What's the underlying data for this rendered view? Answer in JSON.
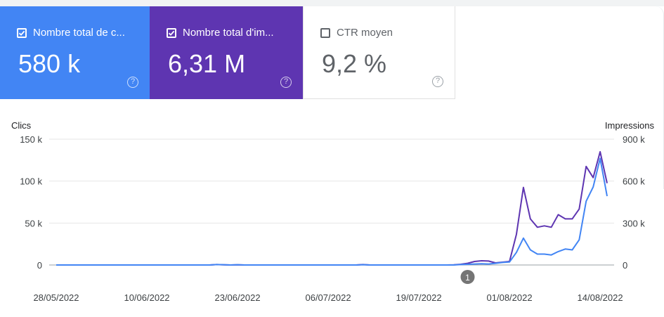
{
  "cards": [
    {
      "label": "Nombre total de c...",
      "value": "580 k",
      "checked": true,
      "color": "#4285f4"
    },
    {
      "label": "Nombre total d'im...",
      "value": "6,31 M",
      "checked": true,
      "color": "#5e35b1"
    },
    {
      "label": "CTR moyen",
      "value": "9,2 %",
      "checked": false,
      "color": "#ffffff"
    }
  ],
  "help_glyph": "?",
  "annotation": {
    "label": "1",
    "date": "26/07/2022"
  },
  "chart_data": {
    "type": "line",
    "ylabel_left": "Clics",
    "ylabel_right": "Impressions",
    "left_ticks": [
      "0",
      "50 k",
      "100 k",
      "150 k"
    ],
    "right_ticks": [
      "0",
      "300 k",
      "600 k",
      "900 k"
    ],
    "ylim_left": [
      0,
      150000
    ],
    "ylim_right": [
      0,
      900000
    ],
    "x_ticks": [
      "28/05/2022",
      "10/06/2022",
      "23/06/2022",
      "06/07/2022",
      "19/07/2022",
      "01/08/2022",
      "14/08/2022"
    ],
    "x": [
      "28/05",
      "29/05",
      "30/05",
      "31/05",
      "01/06",
      "02/06",
      "03/06",
      "04/06",
      "05/06",
      "06/06",
      "07/06",
      "08/06",
      "09/06",
      "10/06",
      "11/06",
      "12/06",
      "13/06",
      "14/06",
      "15/06",
      "16/06",
      "17/06",
      "18/06",
      "19/06",
      "20/06",
      "21/06",
      "22/06",
      "23/06",
      "24/06",
      "25/06",
      "26/06",
      "27/06",
      "28/06",
      "29/06",
      "30/06",
      "01/07",
      "02/07",
      "03/07",
      "04/07",
      "05/07",
      "06/07",
      "07/07",
      "08/07",
      "09/07",
      "10/07",
      "11/07",
      "12/07",
      "13/07",
      "14/07",
      "15/07",
      "16/07",
      "17/07",
      "18/07",
      "19/07",
      "20/07",
      "21/07",
      "22/07",
      "23/07",
      "24/07",
      "25/07",
      "26/07",
      "27/07",
      "28/07",
      "29/07",
      "30/07",
      "31/07",
      "01/08",
      "02/08",
      "03/08",
      "04/08",
      "05/08",
      "06/08",
      "07/08",
      "08/08",
      "09/08",
      "10/08",
      "11/08",
      "12/08",
      "13/08",
      "14/08",
      "15/08"
    ],
    "series": [
      {
        "name": "Clics",
        "axis": "left",
        "color": "#4285f4",
        "values": [
          0,
          0,
          0,
          0,
          0,
          0,
          0,
          0,
          0,
          0,
          0,
          0,
          0,
          0,
          0,
          0,
          0,
          0,
          0,
          0,
          0,
          0,
          0,
          500,
          300,
          0,
          300,
          0,
          0,
          0,
          0,
          0,
          0,
          0,
          0,
          0,
          0,
          0,
          0,
          0,
          0,
          0,
          0,
          0,
          300,
          0,
          0,
          0,
          0,
          0,
          0,
          0,
          0,
          0,
          0,
          0,
          0,
          0,
          500,
          800,
          1200,
          1500,
          1200,
          2000,
          3000,
          3500,
          15000,
          32000,
          18000,
          13000,
          13000,
          12000,
          16000,
          19000,
          18000,
          30000,
          76000,
          93000,
          127000,
          82000
        ]
      },
      {
        "name": "Impressions",
        "axis": "right",
        "color": "#5e35b1",
        "values": [
          0,
          0,
          0,
          0,
          0,
          0,
          0,
          0,
          0,
          0,
          0,
          0,
          0,
          0,
          0,
          0,
          0,
          0,
          0,
          0,
          0,
          0,
          0,
          3000,
          1500,
          0,
          1500,
          0,
          0,
          0,
          0,
          0,
          0,
          0,
          0,
          0,
          0,
          0,
          0,
          0,
          0,
          0,
          0,
          0,
          3000,
          0,
          0,
          0,
          0,
          0,
          0,
          0,
          0,
          0,
          0,
          0,
          0,
          1500,
          5000,
          12000,
          25000,
          30000,
          28000,
          15000,
          20000,
          25000,
          220000,
          555000,
          330000,
          270000,
          280000,
          270000,
          360000,
          330000,
          330000,
          400000,
          705000,
          625000,
          810000,
          585000
        ]
      }
    ]
  }
}
